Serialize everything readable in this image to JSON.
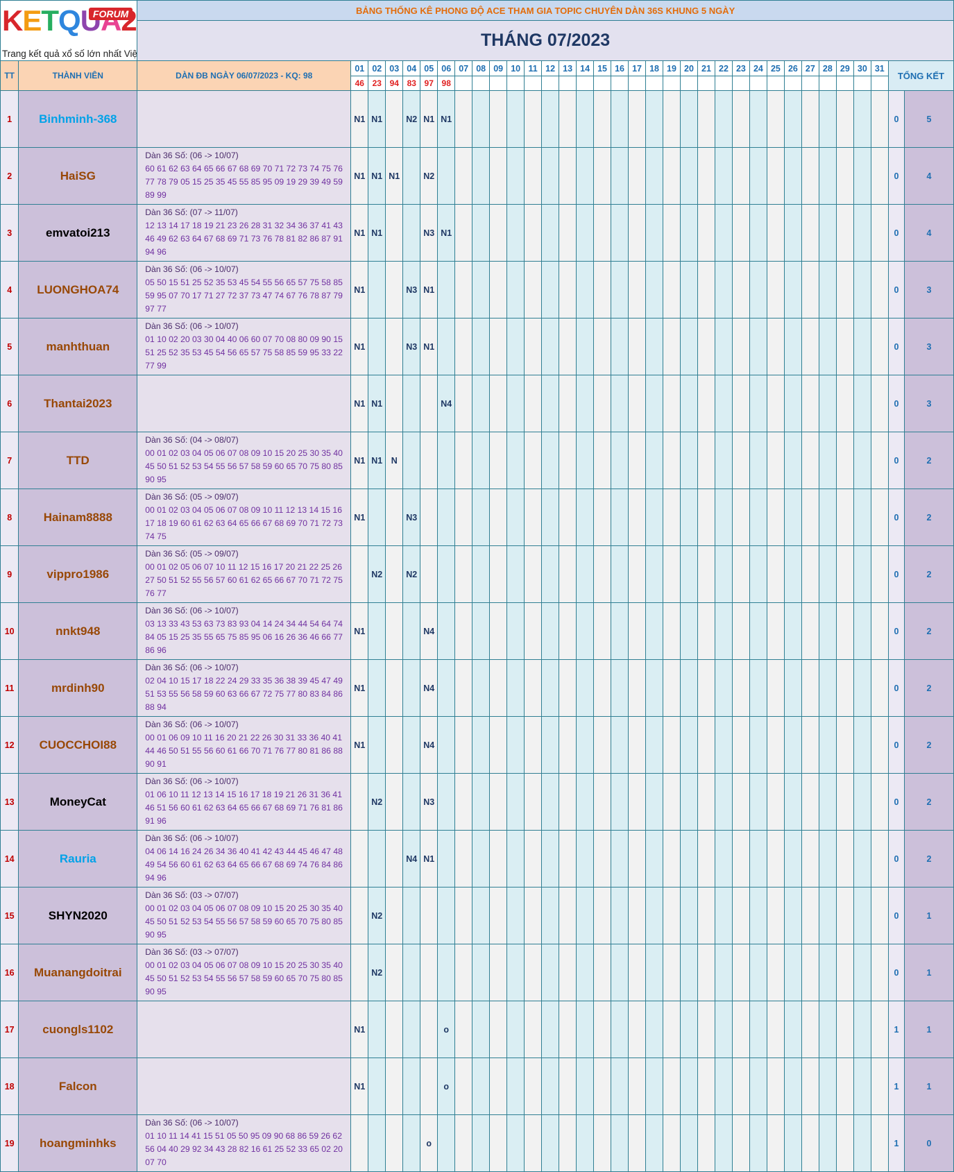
{
  "logo": {
    "word_letters": [
      {
        "t": "K",
        "c": "#d8262b"
      },
      {
        "t": "E",
        "c": "#f39c12"
      },
      {
        "t": "T",
        "c": "#27ae60"
      },
      {
        "t": "Q",
        "c": "#2e86de"
      },
      {
        "t": "U",
        "c": "#8e44ad"
      },
      {
        "t": "A",
        "c": "#e84393"
      },
      {
        "t": "2",
        "c": "#d8262b"
      }
    ],
    "badge": "FORUM",
    "tagline": "Trang kết quả xổ số lớn nhất Việt Nam"
  },
  "title_line": "BẢNG THỐNG KÊ PHONG ĐỘ ACE THAM GIA TOPIC CHUYÊN DÀN 36S KHUNG 5 NGÀY",
  "month_title": "THÁNG 07/2023",
  "headers": {
    "tt": "TT",
    "member": "THÀNH VIÊN",
    "dan": "DÀN ĐB NGÀY 06/07/2023 - KQ: 98",
    "total": "TỔNG KẾT"
  },
  "days": [
    "01",
    "02",
    "03",
    "04",
    "05",
    "06",
    "07",
    "08",
    "09",
    "10",
    "11",
    "12",
    "13",
    "14",
    "15",
    "16",
    "17",
    "18",
    "19",
    "20",
    "21",
    "22",
    "23",
    "24",
    "25",
    "26",
    "27",
    "28",
    "29",
    "30",
    "31"
  ],
  "results": [
    "46",
    "23",
    "94",
    "83",
    "97",
    "98",
    "",
    "",
    "",
    "",
    "",
    "",
    "",
    "",
    "",
    "",
    "",
    "",
    "",
    "",
    "",
    "",
    "",
    "",
    "",
    "",
    "",
    "",
    "",
    "",
    ""
  ],
  "colors": {
    "blue": "#00a2e8",
    "brown": "#984806",
    "black": "#000000",
    "accent": "#1f6fb2",
    "red": "#c00000"
  },
  "rows": [
    {
      "tt": "1",
      "name": "Binhminh-368",
      "color": "blue",
      "dan": "",
      "marks": [
        "N1",
        "N1",
        "",
        "N2",
        "N1",
        "N1"
      ],
      "score": "0",
      "total": "5"
    },
    {
      "tt": "2",
      "name": "HaiSG",
      "color": "brown",
      "dan": "Dàn 36 Số: (06 -> 10/07)\n60 61 62 63 64 65 66 67 68 69 70 71 72 73 74 75 76\n77 78 79 05 15 25 35 45 55 85 95 09 19 29 39 49 59\n89 99",
      "marks": [
        "N1",
        "N1",
        "N1",
        "",
        "N2",
        ""
      ],
      "score": "0",
      "total": "4"
    },
    {
      "tt": "3",
      "name": "emvatoi213",
      "color": "black",
      "dan": "Dàn 36 Số: (07 -> 11/07)\n12 13 14 17 18 19 21 23 26 28 31 32 34 36 37 41 43\n46 49 62 63 64 67 68 69 71 73 76 78 81 82 86 87 91\n94 96",
      "marks": [
        "N1",
        "N1",
        "",
        "",
        "N3",
        "N1"
      ],
      "score": "0",
      "total": "4"
    },
    {
      "tt": "4",
      "name": "LUONGHOA74",
      "color": "brown",
      "dan": "Dàn 36 Số: (06 -> 10/07)\n05 50 15 51 25 52 35 53 45 54 55 56 65 57 75 58 85\n59 95 07 70 17 71 27 72 37 73 47 74 67 76 78 87 79\n97 77",
      "marks": [
        "N1",
        "",
        "",
        "N3",
        "N1",
        ""
      ],
      "score": "0",
      "total": "3"
    },
    {
      "tt": "5",
      "name": "manhthuan",
      "color": "brown",
      "dan": "Dàn 36 Số: (06 -> 10/07)\n01 10 02 20 03 30 04 40 06 60 07 70 08 80 09 90 15\n51 25 52 35 53 45 54 56 65 57 75 58 85 59 95 33 22\n77 99",
      "marks": [
        "N1",
        "",
        "",
        "N3",
        "N1",
        ""
      ],
      "score": "0",
      "total": "3"
    },
    {
      "tt": "6",
      "name": "Thantai2023",
      "color": "brown",
      "dan": "",
      "marks": [
        "N1",
        "N1",
        "",
        "",
        "",
        "N4"
      ],
      "score": "0",
      "total": "3"
    },
    {
      "tt": "7",
      "name": "TTD",
      "color": "brown",
      "dan": "Dàn 36 Số: (04 -> 08/07)\n00 01 02 03 04 05 06 07 08 09 10 15 20 25 30 35 40\n45 50 51 52 53 54 55 56 57 58 59 60 65 70 75 80 85\n90 95",
      "marks": [
        "N1",
        "N1",
        "N",
        "",
        "",
        ""
      ],
      "score": "0",
      "total": "2"
    },
    {
      "tt": "8",
      "name": "Hainam8888",
      "color": "brown",
      "dan": "Dàn 36 Số: (05 -> 09/07)\n00 01 02 03 04 05 06 07 08 09 10 11 12 13 14 15 16\n17 18 19 60 61 62 63 64 65 66 67 68 69 70 71 72 73\n74 75",
      "marks": [
        "N1",
        "",
        "",
        "N3",
        "",
        ""
      ],
      "score": "0",
      "total": "2"
    },
    {
      "tt": "9",
      "name": "vippro1986",
      "color": "brown",
      "dan": "Dàn 36 Số: (05 -> 09/07)\n00 01 02 05 06 07 10 11 12 15 16 17 20 21 22 25 26\n27 50 51 52 55 56 57 60 61 62 65 66 67 70 71 72 75\n76 77",
      "marks": [
        "",
        "N2",
        "",
        "N2",
        "",
        ""
      ],
      "score": "0",
      "total": "2"
    },
    {
      "tt": "10",
      "name": "nnkt948",
      "color": "brown",
      "dan": "Dàn 36 Số: (06 -> 10/07)\n03 13 33 43 53 63 73 83 93 04 14 24 34 44 54 64 74\n84 05 15 25 35 55 65 75 85 95 06 16 26 36 46 66 77\n86 96",
      "marks": [
        "N1",
        "",
        "",
        "",
        "N4",
        ""
      ],
      "score": "0",
      "total": "2"
    },
    {
      "tt": "11",
      "name": "mrdinh90",
      "color": "brown",
      "dan": "Dàn 36 Số: (06 -> 10/07)\n02 04 10 15 17 18 22 24 29 33 35 36 38 39 45 47 49\n51 53 55 56 58 59 60 63 66 67 72 75 77 80 83 84 86\n88 94",
      "marks": [
        "N1",
        "",
        "",
        "",
        "N4",
        ""
      ],
      "score": "0",
      "total": "2"
    },
    {
      "tt": "12",
      "name": "CUOCCHOI88",
      "color": "brown",
      "dan": "Dàn 36 Số: (06 -> 10/07)\n00 01 06 09 10 11 16 20 21 22 26 30 31 33 36 40 41\n44 46 50 51 55 56 60 61 66 70 71 76 77 80 81 86 88\n90 91",
      "marks": [
        "N1",
        "",
        "",
        "",
        "N4",
        ""
      ],
      "score": "0",
      "total": "2"
    },
    {
      "tt": "13",
      "name": "MoneyCat",
      "color": "black",
      "dan": "Dàn 36 Số: (06 -> 10/07)\n01 06 10 11 12 13 14 15 16 17 18 19 21 26 31 36 41\n46 51 56 60 61 62 63 64 65 66 67 68 69 71 76 81 86\n91 96",
      "marks": [
        "",
        "N2",
        "",
        "",
        "N3",
        ""
      ],
      "score": "0",
      "total": "2"
    },
    {
      "tt": "14",
      "name": "Rauria",
      "color": "blue",
      "dan": "Dàn 36 Số: (06 -> 10/07)\n04 06 14 16 24 26 34 36 40 41 42 43 44 45 46 47 48\n49 54 56 60 61 62 63 64 65 66 67 68 69 74 76 84 86\n94 96",
      "marks": [
        "",
        "",
        "",
        "N4",
        "N1",
        ""
      ],
      "score": "0",
      "total": "2"
    },
    {
      "tt": "15",
      "name": "SHYN2020",
      "color": "black",
      "dan": "Dàn 36 Số: (03 -> 07/07)\n00 01 02 03 04 05 06 07 08 09 10 15 20 25 30 35 40\n45 50 51 52 53 54 55 56 57 58 59 60 65 70 75 80 85\n90 95",
      "marks": [
        "",
        "N2",
        "",
        "",
        "",
        ""
      ],
      "score": "0",
      "total": "1"
    },
    {
      "tt": "16",
      "name": "Muanangdoitrai",
      "color": "brown",
      "dan": "Dàn 36 Số: (03 -> 07/07)\n00 01 02 03 04 05 06 07 08 09 10 15 20 25 30 35 40\n45 50 51 52 53 54 55 56 57 58 59 60 65 70 75 80 85\n90 95",
      "marks": [
        "",
        "N2",
        "",
        "",
        "",
        ""
      ],
      "score": "0",
      "total": "1"
    },
    {
      "tt": "17",
      "name": "cuongls1102",
      "color": "brown",
      "dan": "",
      "marks": [
        "N1",
        "",
        "",
        "",
        "",
        "o"
      ],
      "score": "1",
      "total": "1"
    },
    {
      "tt": "18",
      "name": "Falcon",
      "color": "brown",
      "dan": "",
      "marks": [
        "N1",
        "",
        "",
        "",
        "",
        "o"
      ],
      "score": "1",
      "total": "1"
    },
    {
      "tt": "19",
      "name": "hoangminhks",
      "color": "brown",
      "dan": "Dàn 36 Số: (06 -> 10/07)\n01 10 11 14 41 15 51 05 50 95 09 90 68 86 59 26 62\n56 04 40 29 92 34 43 28 82 16 61 25 52 33 65 02 20\n07 70",
      "marks": [
        "",
        "",
        "",
        "",
        "o",
        ""
      ],
      "score": "1",
      "total": "0"
    }
  ]
}
